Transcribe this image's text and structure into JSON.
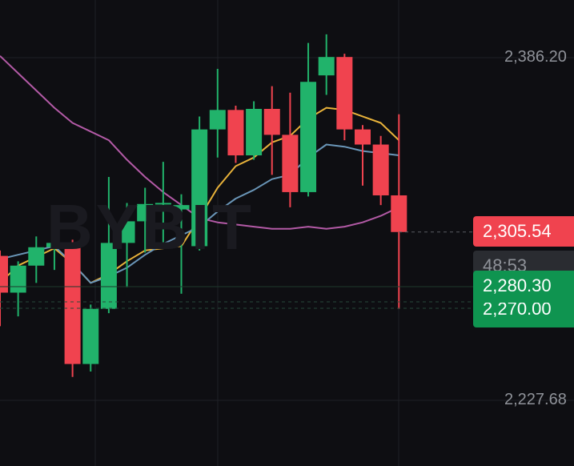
{
  "watermark": "BYBIT",
  "axis": {
    "top_label": "2,386.20",
    "bottom_label": "2,227.68"
  },
  "price_tags": {
    "current_price": "2,305.54",
    "countdown": "48:53",
    "order_price_1": "2,280.30",
    "order_price_2": "2,270.00"
  },
  "colors": {
    "up": "#21b36b",
    "down": "#f0434f",
    "ma_short": "#e8b23a",
    "ma_mid": "#6a96b8",
    "ma_long": "#b35aa6",
    "background": "#0e0e12"
  },
  "chart_data": {
    "type": "candlestick",
    "y_axis_ticks": [
      2386.2,
      2227.68
    ],
    "ylim": [
      2214,
      2405
    ],
    "candles": [
      {
        "open": 2294.5,
        "high": 2297.0,
        "low": 2262.0,
        "close": 2277.5
      },
      {
        "open": 2277.5,
        "high": 2292.0,
        "low": 2266.5,
        "close": 2290.0
      },
      {
        "open": 2290.0,
        "high": 2303.5,
        "low": 2282.0,
        "close": 2298.5
      },
      {
        "open": 2298.5,
        "high": 2307.0,
        "low": 2288.0,
        "close": 2300.5
      },
      {
        "open": 2300.5,
        "high": 2302.0,
        "low": 2238.5,
        "close": 2244.5
      },
      {
        "open": 2244.5,
        "high": 2272.0,
        "low": 2241.0,
        "close": 2270.0
      },
      {
        "open": 2270.0,
        "high": 2331.0,
        "low": 2268.0,
        "close": 2300.5
      },
      {
        "open": 2300.5,
        "high": 2319.0,
        "low": 2280.0,
        "close": 2310.5
      },
      {
        "open": 2310.5,
        "high": 2326.0,
        "low": 2296.0,
        "close": 2318.5
      },
      {
        "open": 2318.5,
        "high": 2338.0,
        "low": 2300.0,
        "close": 2319.0
      },
      {
        "open": 2316.0,
        "high": 2323.0,
        "low": 2277.0,
        "close": 2318.0
      },
      {
        "open": 2299.0,
        "high": 2359.0,
        "low": 2297.0,
        "close": 2353.0
      },
      {
        "open": 2353.0,
        "high": 2381.0,
        "low": 2340.0,
        "close": 2362.0
      },
      {
        "open": 2362.0,
        "high": 2364.0,
        "low": 2337.5,
        "close": 2341.0
      },
      {
        "open": 2341.0,
        "high": 2366.0,
        "low": 2339.0,
        "close": 2362.5
      },
      {
        "open": 2362.5,
        "high": 2373.0,
        "low": 2332.0,
        "close": 2350.5
      },
      {
        "open": 2350.5,
        "high": 2370.0,
        "low": 2317.0,
        "close": 2324.0
      },
      {
        "open": 2324.0,
        "high": 2393.0,
        "low": 2322.0,
        "close": 2375.0
      },
      {
        "open": 2378.0,
        "high": 2397.0,
        "low": 2369.0,
        "close": 2386.5
      },
      {
        "open": 2386.5,
        "high": 2388.0,
        "low": 2348.0,
        "close": 2353.0
      },
      {
        "open": 2353.0,
        "high": 2355.0,
        "low": 2327.0,
        "close": 2346.0
      },
      {
        "open": 2346.0,
        "high": 2350.0,
        "low": 2318.0,
        "close": 2322.5
      },
      {
        "open": 2322.5,
        "high": 2360.0,
        "low": 2270.0,
        "close": 2305.54
      }
    ],
    "moving_averages": [
      {
        "values": [
          2282,
          2290,
          2294,
          2298,
          2291,
          2282,
          2286,
          2292,
          2297,
          2298,
          2299,
          2312,
          2326,
          2336,
          2340,
          2347,
          2350,
          2358,
          2363,
          2362,
          2359,
          2356,
          2348
        ]
      },
      {
        "values": [
          2293,
          2295,
          2297,
          2299,
          2291,
          2282,
          2285,
          2289,
          2295,
          2300,
          2304,
          2308,
          2315,
          2321,
          2325,
          2330,
          2332,
          2340,
          2346,
          2345,
          2343,
          2342,
          2341
        ]
      },
      {
        "values": [
          2387,
          2379,
          2371,
          2363,
          2356,
          2352,
          2348,
          2339,
          2331,
          2324,
          2318,
          2312,
          2310,
          2309,
          2308,
          2307,
          2307,
          2308,
          2307,
          2308,
          2310,
          2313,
          2317
        ]
      }
    ]
  }
}
